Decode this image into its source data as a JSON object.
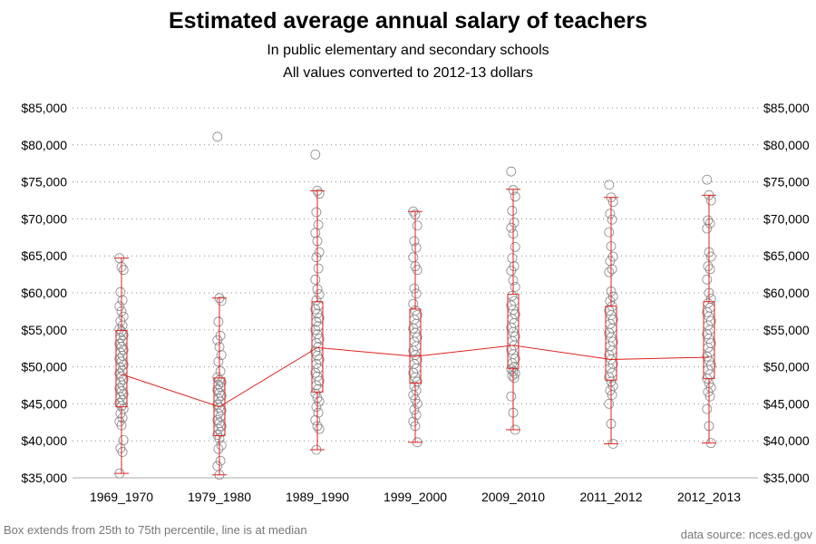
{
  "chart_data": {
    "type": "box",
    "title": "Estimated average annual salary of teachers",
    "subtitle_lines": [
      "In public elementary and secondary schools",
      "All values converted to 2012-13 dollars"
    ],
    "footnote_left": "Box extends from 25th to 75th percentile, line is at median",
    "footnote_right": "data source: nces.ed.gov",
    "categories": [
      "1969_1970",
      "1979_1980",
      "1989_1990",
      "1999_2000",
      "2009_2010",
      "2011_2012",
      "2012_2013"
    ],
    "y_ticks": [
      35000,
      40000,
      45000,
      50000,
      55000,
      60000,
      65000,
      70000,
      75000,
      80000,
      85000
    ],
    "y_tick_labels": [
      "$35,000",
      "$40,000",
      "$45,000",
      "$50,000",
      "$55,000",
      "$60,000",
      "$65,000",
      "$70,000",
      "$75,000",
      "$80,000",
      "$85,000"
    ],
    "ylim": [
      35000,
      85000
    ],
    "grid": "horizontal-dotted",
    "colors": {
      "box": "#e0201b",
      "point": "#888888",
      "grid": "#888888",
      "axis": "#aaaaaa"
    },
    "boxes": [
      {
        "category": "1969_1970",
        "whisker_low": 35600,
        "q1": 44600,
        "median": 49000,
        "q3": 54900,
        "whisker_high": 64700
      },
      {
        "category": "1979_1980",
        "whisker_low": 35400,
        "q1": 40700,
        "median": 44600,
        "q3": 48500,
        "whisker_high": 59300
      },
      {
        "category": "1989_1990",
        "whisker_low": 38800,
        "q1": 46600,
        "median": 52600,
        "q3": 58800,
        "whisker_high": 73800
      },
      {
        "category": "1999_2000",
        "whisker_low": 39800,
        "q1": 47800,
        "median": 51400,
        "q3": 57800,
        "whisker_high": 71000
      },
      {
        "category": "2009_2010",
        "whisker_low": 41500,
        "q1": 49800,
        "median": 52900,
        "q3": 59800,
        "whisker_high": 74000
      },
      {
        "category": "2011_2012",
        "whisker_low": 39600,
        "q1": 48200,
        "median": 51000,
        "q3": 58200,
        "whisker_high": 72900
      },
      {
        "category": "2012_2013",
        "whisker_low": 39700,
        "q1": 48400,
        "median": 51300,
        "q3": 58800,
        "whisker_high": 73200
      }
    ],
    "points": [
      [
        64700,
        63500,
        63100,
        60100,
        59000,
        58200,
        57500,
        56800,
        56200,
        55600,
        55100,
        54800,
        54300,
        53900,
        53500,
        53100,
        52700,
        52300,
        51900,
        51500,
        51100,
        50700,
        50300,
        49900,
        49500,
        49100,
        48700,
        48300,
        47900,
        47500,
        47100,
        46700,
        46300,
        45900,
        45500,
        45100,
        44700,
        44300,
        43700,
        43100,
        42600,
        42100,
        40100,
        39000,
        38500,
        35600
      ],
      [
        81100,
        59300,
        58900,
        56100,
        54200,
        53600,
        52700,
        51600,
        50700,
        49400,
        48600,
        48200,
        47900,
        47600,
        47300,
        46900,
        46500,
        46100,
        45700,
        45300,
        44900,
        44500,
        44100,
        43700,
        43300,
        42800,
        42400,
        42000,
        41600,
        41200,
        40800,
        40300,
        39400,
        38900,
        37300,
        36600,
        35400
      ],
      [
        78700,
        73800,
        73400,
        70900,
        69200,
        68100,
        67000,
        65500,
        64800,
        63300,
        61800,
        60500,
        59800,
        59000,
        58300,
        57800,
        57200,
        56600,
        56100,
        55500,
        55000,
        54400,
        53800,
        53200,
        52700,
        52100,
        51500,
        51000,
        50400,
        49800,
        49200,
        48700,
        48100,
        47500,
        47000,
        46400,
        45800,
        45300,
        44600,
        43800,
        42800,
        42000,
        41600,
        38800
      ],
      [
        71000,
        70600,
        69100,
        67000,
        66100,
        64800,
        63600,
        63100,
        60600,
        59900,
        58500,
        57600,
        57000,
        56400,
        55800,
        55200,
        54600,
        54000,
        53400,
        52800,
        52200,
        51600,
        51000,
        50400,
        49800,
        49200,
        48600,
        48000,
        47400,
        46800,
        46200,
        45600,
        45000,
        44200,
        43500,
        42600,
        42000,
        39800
      ],
      [
        76400,
        73900,
        73000,
        71100,
        69500,
        68800,
        68000,
        66200,
        64700,
        63600,
        63000,
        61700,
        60800,
        59600,
        58900,
        58300,
        57700,
        57100,
        56500,
        55900,
        55300,
        54700,
        54100,
        53500,
        52900,
        52300,
        51700,
        51100,
        50500,
        50000,
        49700,
        49400,
        49100,
        48800,
        48500,
        46000,
        43800,
        41500
      ],
      [
        74600,
        72900,
        72300,
        70700,
        69900,
        68200,
        66300,
        64900,
        64300,
        63200,
        62800,
        60200,
        59500,
        58900,
        58200,
        57600,
        57000,
        56400,
        55800,
        55200,
        54600,
        54000,
        53400,
        52800,
        52200,
        51600,
        51000,
        50400,
        49800,
        49200,
        48600,
        48000,
        47400,
        46800,
        46200,
        45000,
        42300,
        39600
      ],
      [
        75300,
        73200,
        72500,
        69800,
        69400,
        68700,
        65500,
        64900,
        63600,
        63200,
        61800,
        60000,
        59200,
        58600,
        58000,
        57400,
        56800,
        56200,
        55600,
        55000,
        54400,
        53800,
        53200,
        52600,
        52000,
        51400,
        50800,
        50200,
        49600,
        49000,
        48400,
        47800,
        47200,
        46600,
        46000,
        44300,
        42000,
        39700
      ]
    ]
  }
}
